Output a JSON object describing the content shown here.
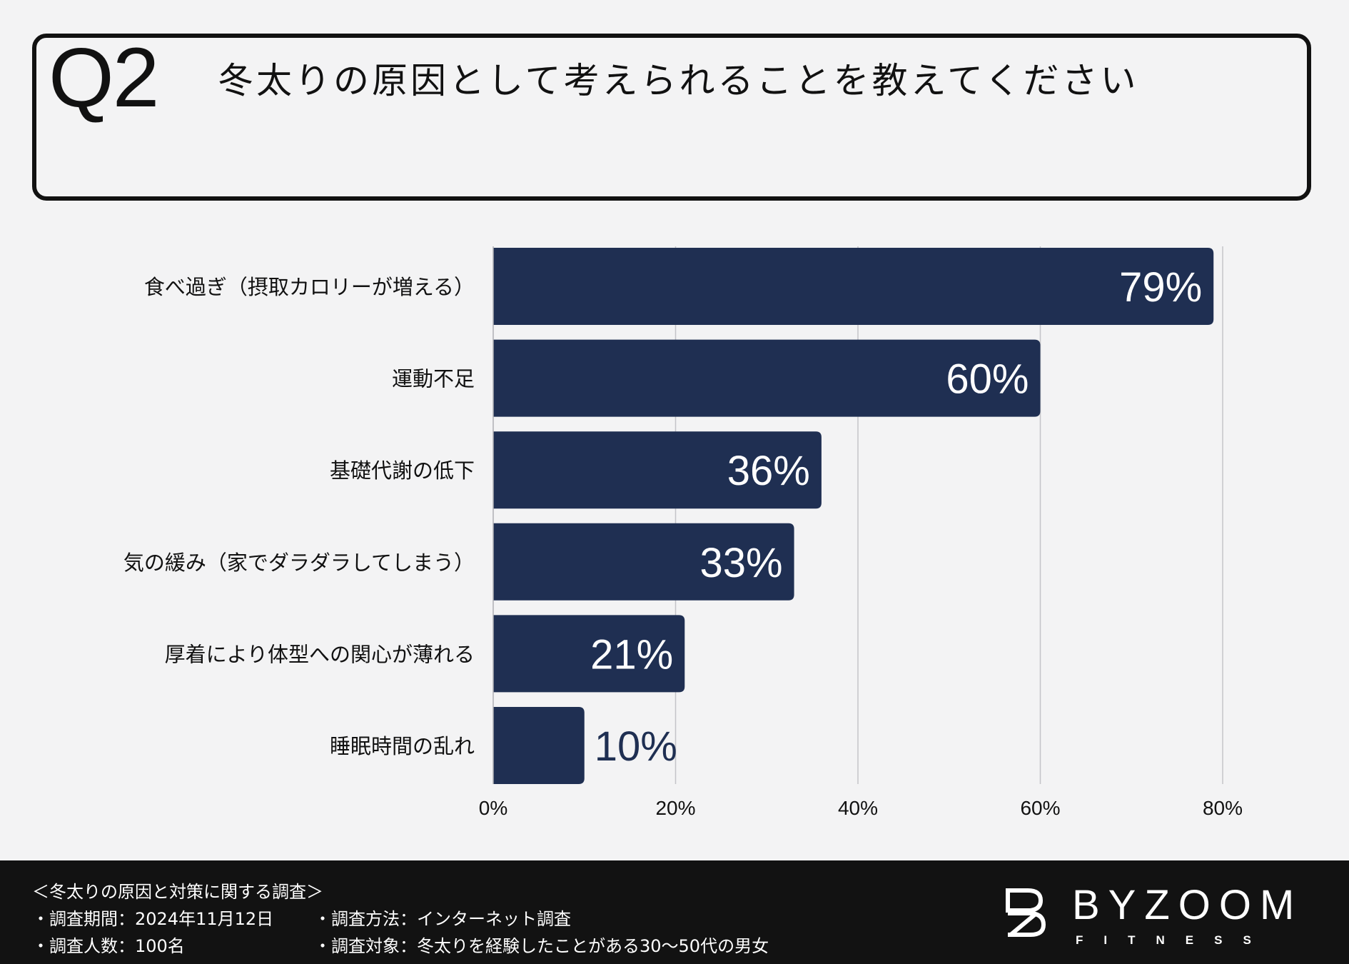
{
  "question": {
    "number": "Q2",
    "text": "冬太りの原因として考えられることを教えてください"
  },
  "chart_data": {
    "type": "bar",
    "orientation": "horizontal",
    "categories": [
      "食べ過ぎ（摂取カロリーが増える）",
      "運動不足",
      "基礎代謝の低下",
      "気の緩み（家でダラダラしてしまう）",
      "厚着により体型への関心が薄れる",
      "睡眠時間の乱れ"
    ],
    "values": [
      79,
      60,
      36,
      33,
      21,
      10
    ],
    "data_labels": [
      "79%",
      "60%",
      "36%",
      "33%",
      "21%",
      "10%"
    ],
    "xlim": [
      0,
      80
    ],
    "xticks": [
      0,
      20,
      40,
      60,
      80
    ],
    "xtick_labels": [
      "0%",
      "20%",
      "40%",
      "60%",
      "80%"
    ],
    "grid": true,
    "bar_color": "#1f2f52",
    "title": "",
    "xlabel": "",
    "ylabel": ""
  },
  "footer": {
    "survey_title": "＜冬太りの原因と対策に関する調査＞",
    "period": "・調査期間：2024年11月12日",
    "method": "・調査方法：インターネット調査",
    "count": "・調査人数：100名",
    "target": "・調査対象：冬太りを経験したことがある30〜50代の男女"
  },
  "brand": {
    "name": "BYZOOM",
    "sub": "FITNESS",
    "icon": "byzoom-logo-icon"
  }
}
